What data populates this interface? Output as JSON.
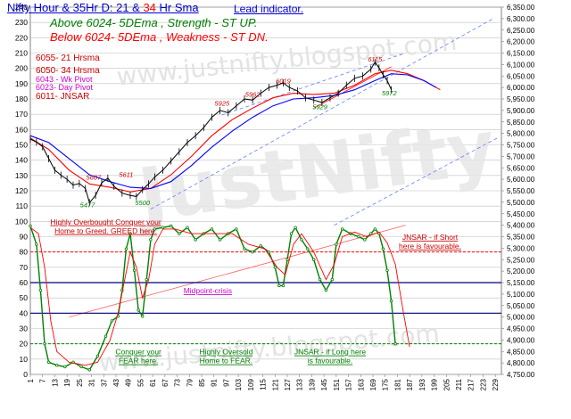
{
  "header": {
    "title_part1": "Nifty Hour & 35Hr D: 21 & ",
    "title_part2": "34",
    "title_part3": " Hr Sma",
    "subtitle": "Lead indicator.",
    "above_text": "Above 6024-  5DEma ,  Strength - ST  UP.",
    "below_text": "Below 6024-  5DEma ,  Weakness - ST  DN."
  },
  "legend": {
    "line1": "6055- 21 Hrsma",
    "line2": "6050- 34 Hrsma",
    "line3": "6043  - Wk Pivot",
    "line4": "6023- Day Pivot",
    "line5": "6011- JNSAR"
  },
  "watermarks": {
    "big": "JustNifty",
    "url": "www.justnifty.blogspot.com"
  },
  "colors": {
    "price": "#000000",
    "sma21": "#ff0000",
    "sma34": "#0000ff",
    "oscillator": "#008000",
    "signal": "#ff0000",
    "guide": "#ff0000",
    "midpoint": "#000080",
    "grid": "#c0c0c0",
    "channel": "#6080ff"
  },
  "chart_data": {
    "type": "line",
    "x_tick_labels": [
      "1",
      "7",
      "13",
      "19",
      "25",
      "31",
      "37",
      "43",
      "49",
      "55",
      "61",
      "67",
      "73",
      "79",
      "85",
      "91",
      "97",
      "103",
      "109",
      "115",
      "121",
      "127",
      "133",
      "139",
      "145",
      "151",
      "157",
      "163",
      "169",
      "175",
      "181",
      "187",
      "193",
      "199",
      "205",
      "211",
      "217",
      "223",
      "229"
    ],
    "x_range": [
      1,
      232
    ],
    "left_axis": {
      "ticks": [
        0,
        10,
        20,
        30,
        40,
        50,
        60,
        70,
        80,
        90,
        100,
        110,
        120,
        130,
        140,
        150,
        160,
        170,
        180,
        190,
        200,
        210,
        220,
        230,
        240
      ],
      "range": [
        0,
        240
      ]
    },
    "right_axis": {
      "ticks": [
        "4,750.00",
        "4,800.00",
        "4,850.00",
        "4,900.00",
        "4,950.00",
        "5,000.00",
        "5,050.00",
        "5,100.00",
        "5,150.00",
        "5,200.00",
        "5,250.00",
        "5,300.00",
        "5,350.00",
        "5,400.00",
        "5,450.00",
        "5,500.00",
        "5,550.00",
        "5,600.00",
        "5,650.00",
        "5,700.00",
        "5,750.00",
        "5,800.00",
        "5,850.00",
        "5,900.00",
        "5,950.00",
        "6,000.00",
        "6,050.00",
        "6,100.00",
        "6,150.00",
        "6,200.00",
        "6,250.00",
        "6,300.00",
        "6,350.00"
      ],
      "range": [
        4750,
        6350
      ]
    },
    "grid": true,
    "price_labels": [
      {
        "text": "5611",
        "x": 48,
        "y": 5611,
        "color": "#cc0000"
      },
      {
        "text": "5607",
        "x": 32,
        "y": 5598,
        "color": "#cc0000"
      },
      {
        "text": "5477",
        "x": 29,
        "y": 5478,
        "color": "#008000"
      },
      {
        "text": "5500",
        "x": 56,
        "y": 5488,
        "color": "#008000"
      },
      {
        "text": "5925",
        "x": 95,
        "y": 5920,
        "color": "#cc0000"
      },
      {
        "text": "5962",
        "x": 110,
        "y": 5960,
        "color": "#cc0000"
      },
      {
        "text": "6019",
        "x": 125,
        "y": 6018,
        "color": "#cc0000"
      },
      {
        "text": "5929",
        "x": 143,
        "y": 5905,
        "color": "#008000"
      },
      {
        "text": "6115",
        "x": 170,
        "y": 6113,
        "color": "#cc0000"
      },
      {
        "text": "5972",
        "x": 177,
        "y": 5965,
        "color": "#008000"
      }
    ],
    "price": [
      {
        "x": 1,
        "y": 5775
      },
      {
        "x": 4,
        "y": 5762
      },
      {
        "x": 7,
        "y": 5742
      },
      {
        "x": 10,
        "y": 5690
      },
      {
        "x": 13,
        "y": 5640
      },
      {
        "x": 16,
        "y": 5618
      },
      {
        "x": 19,
        "y": 5600
      },
      {
        "x": 22,
        "y": 5575
      },
      {
        "x": 25,
        "y": 5582
      },
      {
        "x": 28,
        "y": 5560
      },
      {
        "x": 30,
        "y": 5498
      },
      {
        "x": 33,
        "y": 5530
      },
      {
        "x": 36,
        "y": 5585
      },
      {
        "x": 39,
        "y": 5605
      },
      {
        "x": 42,
        "y": 5570
      },
      {
        "x": 46,
        "y": 5540
      },
      {
        "x": 50,
        "y": 5530
      },
      {
        "x": 53,
        "y": 5525
      },
      {
        "x": 56,
        "y": 5555
      },
      {
        "x": 59,
        "y": 5580
      },
      {
        "x": 62,
        "y": 5610
      },
      {
        "x": 66,
        "y": 5640
      },
      {
        "x": 70,
        "y": 5680
      },
      {
        "x": 74,
        "y": 5720
      },
      {
        "x": 78,
        "y": 5760
      },
      {
        "x": 82,
        "y": 5790
      },
      {
        "x": 86,
        "y": 5825
      },
      {
        "x": 90,
        "y": 5870
      },
      {
        "x": 94,
        "y": 5900
      },
      {
        "x": 98,
        "y": 5890
      },
      {
        "x": 102,
        "y": 5920
      },
      {
        "x": 106,
        "y": 5950
      },
      {
        "x": 110,
        "y": 5945
      },
      {
        "x": 114,
        "y": 5975
      },
      {
        "x": 118,
        "y": 6000
      },
      {
        "x": 122,
        "y": 6010
      },
      {
        "x": 125,
        "y": 6020
      },
      {
        "x": 128,
        "y": 6000
      },
      {
        "x": 132,
        "y": 5985
      },
      {
        "x": 136,
        "y": 5955
      },
      {
        "x": 140,
        "y": 5945
      },
      {
        "x": 144,
        "y": 5935
      },
      {
        "x": 148,
        "y": 5955
      },
      {
        "x": 152,
        "y": 5975
      },
      {
        "x": 156,
        "y": 6010
      },
      {
        "x": 160,
        "y": 6040
      },
      {
        "x": 164,
        "y": 6050
      },
      {
        "x": 168,
        "y": 6080
      },
      {
        "x": 170,
        "y": 6110
      },
      {
        "x": 172,
        "y": 6085
      },
      {
        "x": 174,
        "y": 6055
      },
      {
        "x": 176,
        "y": 6030
      },
      {
        "x": 178,
        "y": 5990
      }
    ],
    "series": [
      {
        "name": "21 Hrsma",
        "points": [
          {
            "x": 1,
            "y": 5780
          },
          {
            "x": 10,
            "y": 5730
          },
          {
            "x": 20,
            "y": 5640
          },
          {
            "x": 30,
            "y": 5580
          },
          {
            "x": 40,
            "y": 5565
          },
          {
            "x": 50,
            "y": 5545
          },
          {
            "x": 60,
            "y": 5560
          },
          {
            "x": 70,
            "y": 5620
          },
          {
            "x": 80,
            "y": 5700
          },
          {
            "x": 90,
            "y": 5790
          },
          {
            "x": 100,
            "y": 5860
          },
          {
            "x": 110,
            "y": 5910
          },
          {
            "x": 120,
            "y": 5955
          },
          {
            "x": 130,
            "y": 5975
          },
          {
            "x": 140,
            "y": 5970
          },
          {
            "x": 150,
            "y": 5975
          },
          {
            "x": 160,
            "y": 6010
          },
          {
            "x": 170,
            "y": 6060
          },
          {
            "x": 178,
            "y": 6075
          },
          {
            "x": 186,
            "y": 6060
          },
          {
            "x": 194,
            "y": 6030
          },
          {
            "x": 202,
            "y": 5990
          }
        ]
      },
      {
        "name": "34 Hrsma",
        "points": [
          {
            "x": 1,
            "y": 5790
          },
          {
            "x": 10,
            "y": 5760
          },
          {
            "x": 20,
            "y": 5690
          },
          {
            "x": 30,
            "y": 5620
          },
          {
            "x": 40,
            "y": 5590
          },
          {
            "x": 50,
            "y": 5565
          },
          {
            "x": 60,
            "y": 5560
          },
          {
            "x": 70,
            "y": 5590
          },
          {
            "x": 80,
            "y": 5660
          },
          {
            "x": 90,
            "y": 5740
          },
          {
            "x": 100,
            "y": 5810
          },
          {
            "x": 110,
            "y": 5870
          },
          {
            "x": 120,
            "y": 5920
          },
          {
            "x": 130,
            "y": 5950
          },
          {
            "x": 140,
            "y": 5955
          },
          {
            "x": 150,
            "y": 5965
          },
          {
            "x": 160,
            "y": 5990
          },
          {
            "x": 170,
            "y": 6030
          },
          {
            "x": 178,
            "y": 6060
          },
          {
            "x": 186,
            "y": 6055
          },
          {
            "x": 194,
            "y": 6030
          },
          {
            "x": 200,
            "y": 6000
          }
        ]
      },
      {
        "name": "Oscillator",
        "points": [
          {
            "x": 1,
            "y": 97
          },
          {
            "x": 4,
            "y": 85
          },
          {
            "x": 6,
            "y": 55
          },
          {
            "x": 8,
            "y": 20
          },
          {
            "x": 10,
            "y": 8
          },
          {
            "x": 14,
            "y": 6
          },
          {
            "x": 18,
            "y": 5
          },
          {
            "x": 22,
            "y": 8
          },
          {
            "x": 26,
            "y": 5
          },
          {
            "x": 30,
            "y": 3
          },
          {
            "x": 34,
            "y": 12
          },
          {
            "x": 38,
            "y": 25
          },
          {
            "x": 41,
            "y": 35
          },
          {
            "x": 44,
            "y": 38
          },
          {
            "x": 46,
            "y": 55
          },
          {
            "x": 48,
            "y": 82
          },
          {
            "x": 50,
            "y": 92
          },
          {
            "x": 52,
            "y": 68
          },
          {
            "x": 54,
            "y": 42
          },
          {
            "x": 56,
            "y": 38
          },
          {
            "x": 58,
            "y": 62
          },
          {
            "x": 60,
            "y": 88
          },
          {
            "x": 62,
            "y": 95
          },
          {
            "x": 66,
            "y": 96
          },
          {
            "x": 70,
            "y": 97
          },
          {
            "x": 74,
            "y": 92
          },
          {
            "x": 78,
            "y": 96
          },
          {
            "x": 82,
            "y": 88
          },
          {
            "x": 86,
            "y": 92
          },
          {
            "x": 90,
            "y": 95
          },
          {
            "x": 94,
            "y": 88
          },
          {
            "x": 98,
            "y": 92
          },
          {
            "x": 102,
            "y": 95
          },
          {
            "x": 106,
            "y": 82
          },
          {
            "x": 110,
            "y": 80
          },
          {
            "x": 114,
            "y": 84
          },
          {
            "x": 118,
            "y": 80
          },
          {
            "x": 121,
            "y": 70
          },
          {
            "x": 123,
            "y": 58
          },
          {
            "x": 125,
            "y": 58
          },
          {
            "x": 127,
            "y": 75
          },
          {
            "x": 129,
            "y": 92
          },
          {
            "x": 131,
            "y": 96
          },
          {
            "x": 134,
            "y": 88
          },
          {
            "x": 137,
            "y": 82
          },
          {
            "x": 140,
            "y": 75
          },
          {
            "x": 143,
            "y": 62
          },
          {
            "x": 146,
            "y": 55
          },
          {
            "x": 149,
            "y": 62
          },
          {
            "x": 151,
            "y": 85
          },
          {
            "x": 154,
            "y": 95
          },
          {
            "x": 158,
            "y": 92
          },
          {
            "x": 162,
            "y": 90
          },
          {
            "x": 165,
            "y": 88
          },
          {
            "x": 168,
            "y": 92
          },
          {
            "x": 170,
            "y": 95
          },
          {
            "x": 172,
            "y": 92
          },
          {
            "x": 174,
            "y": 82
          },
          {
            "x": 176,
            "y": 68
          },
          {
            "x": 178,
            "y": 48
          },
          {
            "x": 180,
            "y": 20
          }
        ]
      },
      {
        "name": "Signal",
        "points": [
          {
            "x": 1,
            "y": 96
          },
          {
            "x": 5,
            "y": 92
          },
          {
            "x": 8,
            "y": 70
          },
          {
            "x": 11,
            "y": 35
          },
          {
            "x": 14,
            "y": 15
          },
          {
            "x": 20,
            "y": 8
          },
          {
            "x": 28,
            "y": 6
          },
          {
            "x": 34,
            "y": 8
          },
          {
            "x": 40,
            "y": 22
          },
          {
            "x": 44,
            "y": 40
          },
          {
            "x": 47,
            "y": 60
          },
          {
            "x": 50,
            "y": 80
          },
          {
            "x": 53,
            "y": 70
          },
          {
            "x": 56,
            "y": 50
          },
          {
            "x": 59,
            "y": 62
          },
          {
            "x": 62,
            "y": 85
          },
          {
            "x": 66,
            "y": 95
          },
          {
            "x": 72,
            "y": 95
          },
          {
            "x": 80,
            "y": 92
          },
          {
            "x": 90,
            "y": 92
          },
          {
            "x": 100,
            "y": 92
          },
          {
            "x": 108,
            "y": 85
          },
          {
            "x": 116,
            "y": 82
          },
          {
            "x": 122,
            "y": 70
          },
          {
            "x": 126,
            "y": 65
          },
          {
            "x": 130,
            "y": 85
          },
          {
            "x": 134,
            "y": 92
          },
          {
            "x": 140,
            "y": 80
          },
          {
            "x": 146,
            "y": 62
          },
          {
            "x": 150,
            "y": 72
          },
          {
            "x": 154,
            "y": 90
          },
          {
            "x": 160,
            "y": 93
          },
          {
            "x": 166,
            "y": 90
          },
          {
            "x": 172,
            "y": 93
          },
          {
            "x": 176,
            "y": 86
          },
          {
            "x": 180,
            "y": 72
          },
          {
            "x": 184,
            "y": 40
          },
          {
            "x": 187,
            "y": 18
          }
        ]
      }
    ],
    "h_lines": [
      {
        "y": 80,
        "style": "dashed",
        "color": "#ff0000"
      },
      {
        "y": 60,
        "style": "solid",
        "color": "#000080"
      },
      {
        "y": 40,
        "style": "solid",
        "color": "#000080"
      },
      {
        "y": 20,
        "style": "dashed",
        "color": "#008000"
      }
    ],
    "trendlines": [
      {
        "from": {
          "x": 60,
          "y": 5470
        },
        "to": {
          "x": 228,
          "y": 6300
        },
        "color": "#6080ff",
        "dash": true
      },
      {
        "from": {
          "x": 95,
          "y": 5880
        },
        "to": {
          "x": 185,
          "y": 6150
        },
        "color": "#6080ff",
        "dash": true
      },
      {
        "from": {
          "x": 140,
          "y": 5910
        },
        "to": {
          "x": 178,
          "y": 6090
        },
        "color": "#ff0000",
        "dash": false
      },
      {
        "from": {
          "x": 150,
          "y": 5400
        },
        "to": {
          "x": 230,
          "y": 5780
        },
        "color": "#6080ff",
        "dash": true
      },
      {
        "from": {
          "x": 20,
          "y": 5000
        },
        "to": {
          "x": 185,
          "y": 5400
        },
        "color": "#ff6060",
        "dash": false
      }
    ],
    "annotations": [
      {
        "id": "overbought",
        "lines": [
          "Highly Overbought Conquer your",
          "Home to Greed.  GREED here."
        ],
        "color": "#cc0000",
        "x": 38,
        "y": 98
      },
      {
        "id": "jnsar_short",
        "lines": [
          "JNSAR - if Short",
          "here is favourable."
        ],
        "color": "#cc0000",
        "x": 197,
        "y": 88
      },
      {
        "id": "midpoint",
        "lines": [
          "Midpoint-crisis"
        ],
        "color": "#cc00cc",
        "x": 88,
        "y": 53
      },
      {
        "id": "conquer_fear",
        "lines": [
          "Conquer your",
          "FEAR here."
        ],
        "color": "#008000",
        "x": 54,
        "y": 13
      },
      {
        "id": "oversold",
        "lines": [
          "Highly Oversold",
          "Home to FEAR."
        ],
        "color": "#008000",
        "x": 97,
        "y": 13
      },
      {
        "id": "jnsar_long",
        "lines": [
          "JNSAR - if Long here",
          "is favourable."
        ],
        "color": "#008000",
        "x": 148,
        "y": 13
      }
    ]
  }
}
